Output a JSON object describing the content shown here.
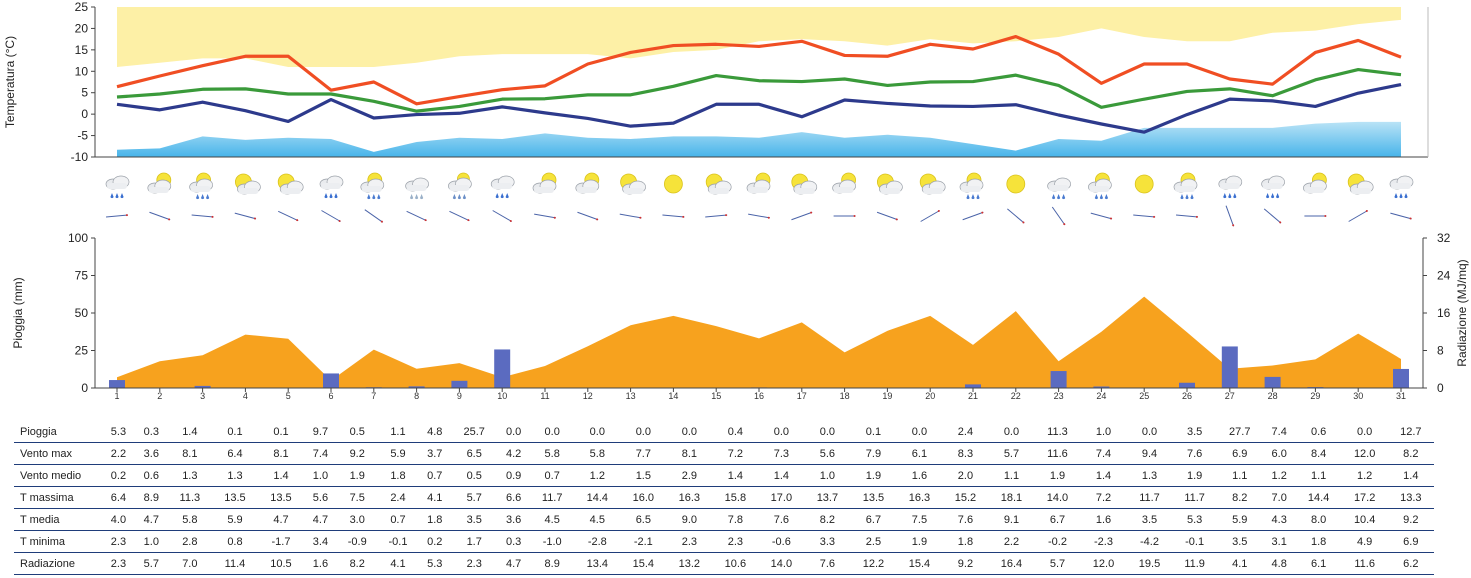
{
  "chart_data": [
    {
      "type": "line",
      "ylabel": "Temperatura (°C)",
      "ylim": [
        -10,
        25
      ],
      "yticks": [
        25,
        20,
        15,
        10,
        5,
        0,
        -5,
        -10
      ],
      "days": [
        1,
        2,
        3,
        4,
        5,
        6,
        7,
        8,
        9,
        10,
        11,
        12,
        13,
        14,
        15,
        16,
        17,
        18,
        19,
        20,
        21,
        22,
        23,
        24,
        25,
        26,
        27,
        28,
        29,
        30,
        31
      ],
      "series": [
        {
          "name": "T massima",
          "color": "#f04e23",
          "values": [
            6.4,
            8.9,
            11.3,
            13.5,
            13.5,
            5.6,
            7.5,
            2.4,
            4.1,
            5.7,
            6.6,
            11.7,
            14.4,
            16.0,
            16.3,
            15.8,
            17.0,
            13.7,
            13.5,
            16.3,
            15.2,
            18.1,
            14.0,
            7.2,
            11.7,
            11.7,
            8.2,
            7.0,
            14.4,
            17.2,
            13.3
          ]
        },
        {
          "name": "T media",
          "color": "#3a9a3a",
          "values": [
            4.0,
            4.7,
            5.8,
            5.9,
            4.7,
            4.7,
            3.0,
            0.7,
            1.8,
            3.5,
            3.6,
            4.5,
            4.5,
            6.5,
            9.0,
            7.8,
            7.6,
            8.2,
            6.7,
            7.5,
            7.6,
            9.1,
            6.7,
            1.6,
            3.5,
            5.3,
            5.9,
            4.3,
            8.0,
            10.4,
            9.2
          ]
        },
        {
          "name": "T minima",
          "color": "#2d3a8c",
          "values": [
            2.3,
            1.0,
            2.8,
            0.8,
            -1.7,
            3.4,
            -0.9,
            -0.1,
            0.2,
            1.7,
            0.3,
            -1.0,
            -2.8,
            -2.1,
            2.3,
            2.3,
            -0.6,
            3.3,
            2.5,
            1.9,
            1.8,
            2.2,
            -0.2,
            -2.3,
            -4.2,
            -0.1,
            3.5,
            3.1,
            1.8,
            4.9,
            6.9
          ]
        }
      ],
      "band_upper": [
        11,
        12,
        13,
        13,
        11,
        11,
        11,
        12,
        13.5,
        14,
        14,
        14,
        13,
        14.5,
        15,
        17,
        17.5,
        17,
        16,
        17.5,
        16.5,
        17,
        18,
        20,
        18,
        17,
        17,
        19,
        19.5,
        21,
        22
      ],
      "band_lower_top": [
        -8.3,
        -8,
        -5.2,
        -6,
        -5.5,
        -5.8,
        -8.8,
        -6.5,
        -5.5,
        -5.8,
        -4.5,
        -5.5,
        -5.8,
        -5.2,
        -5.2,
        -5.5,
        -4.2,
        -5.5,
        -4.8,
        -5.5,
        -7,
        -8.5,
        -5.8,
        -6.2,
        -3.2,
        -3.2,
        -3.2,
        -3.2,
        -2.2,
        -1.8,
        -1.8
      ]
    },
    {
      "type": "bar",
      "ylabel": "Pioggia (mm)",
      "ylim": [
        0,
        100
      ],
      "yticks": [
        100,
        75,
        50,
        25,
        0
      ],
      "y2label": "Radiazione (MJ/mq)",
      "y2lim": [
        0,
        32
      ],
      "y2ticks": [
        32,
        24,
        16,
        8,
        0
      ],
      "categories": [
        "1",
        "2",
        "3",
        "4",
        "5",
        "6",
        "7",
        "8",
        "9",
        "10",
        "11",
        "12",
        "13",
        "14",
        "15",
        "16",
        "17",
        "18",
        "19",
        "20",
        "21",
        "22",
        "23",
        "24",
        "25",
        "26",
        "27",
        "28",
        "29",
        "30",
        "31"
      ],
      "rain": [
        5.3,
        0.3,
        1.4,
        0.1,
        0.1,
        9.7,
        0.5,
        1.1,
        4.8,
        25.7,
        0.0,
        0.0,
        0.0,
        0.0,
        0.0,
        0.4,
        0.0,
        0.0,
        0.1,
        0.0,
        2.4,
        0.0,
        11.3,
        1.0,
        0.0,
        3.5,
        27.7,
        7.4,
        0.6,
        0.0,
        12.7
      ],
      "radiation": [
        2.3,
        5.7,
        7.0,
        11.4,
        10.5,
        1.6,
        8.2,
        4.1,
        5.3,
        2.3,
        4.7,
        8.9,
        13.4,
        15.4,
        13.2,
        10.6,
        14.0,
        7.6,
        12.2,
        15.4,
        9.2,
        16.4,
        5.7,
        12.0,
        19.5,
        11.9,
        4.1,
        4.8,
        6.1,
        11.6,
        6.2
      ],
      "bar_color": "#5b6bc0",
      "area_color": "#f7a21e"
    }
  ],
  "weather_icons": [
    "rain",
    "cloud-sun",
    "sun-cloud-rain",
    "sun-cloud",
    "sun-cloud",
    "rain",
    "sun-cloud-rain",
    "cloud-snow",
    "rain-snow",
    "rain",
    "cloud-sun",
    "cloud-sun",
    "sun-cloud",
    "sun",
    "sun-cloud",
    "cloud-sun",
    "sun-cloud",
    "cloud-sun",
    "sun-cloud",
    "sun-cloud",
    "sun-cloud-rain",
    "sun",
    "cloud-rain",
    "sun-cloud-rain",
    "sun",
    "sun-cloud-rain",
    "rain",
    "rain",
    "cloud-sun",
    "sun-cloud",
    "rain"
  ],
  "table": {
    "rows": [
      {
        "label": "Pioggia",
        "values": [
          "5.3",
          "0.3",
          "1.4",
          "0.1",
          "0.1",
          "9.7",
          "0.5",
          "1.1",
          "4.8",
          "25.7",
          "0.0",
          "0.0",
          "0.0",
          "0.0",
          "0.0",
          "0.4",
          "0.0",
          "0.0",
          "0.1",
          "0.0",
          "2.4",
          "0.0",
          "11.3",
          "1.0",
          "0.0",
          "3.5",
          "27.7",
          "7.4",
          "0.6",
          "0.0",
          "12.7"
        ]
      },
      {
        "label": "Vento max",
        "values": [
          "2.2",
          "3.6",
          "8.1",
          "6.4",
          "8.1",
          "7.4",
          "9.2",
          "5.9",
          "3.7",
          "6.5",
          "4.2",
          "5.8",
          "5.8",
          "7.7",
          "8.1",
          "7.2",
          "7.3",
          "5.6",
          "7.9",
          "6.1",
          "8.3",
          "5.7",
          "11.6",
          "7.4",
          "9.4",
          "7.6",
          "6.9",
          "6.0",
          "8.4",
          "12.0",
          "8.2"
        ]
      },
      {
        "label": "Vento medio",
        "values": [
          "0.2",
          "0.6",
          "1.3",
          "1.3",
          "1.4",
          "1.0",
          "1.9",
          "1.8",
          "0.7",
          "0.5",
          "0.9",
          "0.7",
          "1.2",
          "1.5",
          "2.9",
          "1.4",
          "1.4",
          "1.0",
          "1.9",
          "1.6",
          "2.0",
          "1.1",
          "1.9",
          "1.4",
          "1.3",
          "1.9",
          "1.1",
          "1.2",
          "1.1",
          "1.2",
          "1.4"
        ]
      },
      {
        "label": "T massima",
        "values": [
          "6.4",
          "8.9",
          "11.3",
          "13.5",
          "13.5",
          "5.6",
          "7.5",
          "2.4",
          "4.1",
          "5.7",
          "6.6",
          "11.7",
          "14.4",
          "16.0",
          "16.3",
          "15.8",
          "17.0",
          "13.7",
          "13.5",
          "16.3",
          "15.2",
          "18.1",
          "14.0",
          "7.2",
          "11.7",
          "11.7",
          "8.2",
          "7.0",
          "14.4",
          "17.2",
          "13.3"
        ]
      },
      {
        "label": "T media",
        "values": [
          "4.0",
          "4.7",
          "5.8",
          "5.9",
          "4.7",
          "4.7",
          "3.0",
          "0.7",
          "1.8",
          "3.5",
          "3.6",
          "4.5",
          "4.5",
          "6.5",
          "9.0",
          "7.8",
          "7.6",
          "8.2",
          "6.7",
          "7.5",
          "7.6",
          "9.1",
          "6.7",
          "1.6",
          "3.5",
          "5.3",
          "5.9",
          "4.3",
          "8.0",
          "10.4",
          "9.2"
        ]
      },
      {
        "label": "T minima",
        "values": [
          "2.3",
          "1.0",
          "2.8",
          "0.8",
          "-1.7",
          "3.4",
          "-0.9",
          "-0.1",
          "0.2",
          "1.7",
          "0.3",
          "-1.0",
          "-2.8",
          "-2.1",
          "2.3",
          "2.3",
          "-0.6",
          "3.3",
          "2.5",
          "1.9",
          "1.8",
          "2.2",
          "-0.2",
          "-2.3",
          "-4.2",
          "-0.1",
          "3.5",
          "3.1",
          "1.8",
          "4.9",
          "6.9"
        ]
      },
      {
        "label": "Radiazione",
        "values": [
          "2.3",
          "5.7",
          "7.0",
          "11.4",
          "10.5",
          "1.6",
          "8.2",
          "4.1",
          "5.3",
          "2.3",
          "4.7",
          "8.9",
          "13.4",
          "15.4",
          "13.2",
          "10.6",
          "14.0",
          "7.6",
          "12.2",
          "15.4",
          "9.2",
          "16.4",
          "5.7",
          "12.0",
          "19.5",
          "11.9",
          "4.1",
          "4.8",
          "6.1",
          "11.6",
          "6.2"
        ]
      }
    ]
  }
}
